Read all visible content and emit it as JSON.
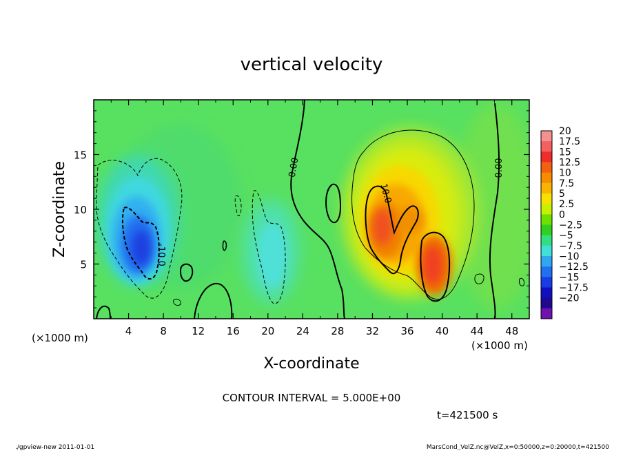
{
  "chart_data": {
    "type": "heatmap",
    "title": "vertical velocity",
    "xlabel": "X-coordinate",
    "ylabel": "Z-coordinate",
    "x_unit_left": "(×1000 m)",
    "x_unit_right": "(×1000 m)",
    "xlim": [
      0,
      50
    ],
    "ylim": [
      0,
      20
    ],
    "x_ticks": [
      4,
      8,
      12,
      16,
      20,
      24,
      28,
      32,
      36,
      40,
      44,
      48
    ],
    "y_ticks": [
      5,
      10,
      15
    ],
    "contour_interval_text": "CONTOUR INTERVAL = 5.000E+00",
    "time_text": "t=421500 s",
    "contour_labels": [
      "0.00",
      "-10.0",
      "0.00",
      "10.0",
      "0.00"
    ],
    "colorbar": {
      "labels": [
        "20",
        "17.5",
        "15",
        "12.5",
        "10",
        "7.5",
        "5",
        "2.5",
        "0",
        "−2.5",
        "−5",
        "−7.5",
        "−10",
        "−12.5",
        "−15",
        "−17.5",
        "−20"
      ],
      "colors": [
        "#f49090",
        "#f26060",
        "#f02c2c",
        "#f26010",
        "#f88c00",
        "#f8b400",
        "#f8e000",
        "#c8f000",
        "#70e000",
        "#30d020",
        "#30e080",
        "#40e0d8",
        "#30a8f0",
        "#2070f0",
        "#1a3ce8",
        "#1010c0",
        "#200890",
        "#7010b0"
      ]
    },
    "features": [
      {
        "kind": "updraft",
        "x": 33,
        "z": 8,
        "max_value": 12.5
      },
      {
        "kind": "updraft",
        "x": 38.8,
        "z": 5.5,
        "max_value": 12.5
      },
      {
        "kind": "downdraft",
        "x": 6,
        "z": 6.5,
        "min_value": -12.5
      },
      {
        "kind": "downdraft",
        "x": 20.5,
        "z": 6,
        "min_value": -5
      }
    ]
  },
  "footer": {
    "left": "./gpview-new  2011-01-01",
    "right": "MarsCond_VelZ.nc@VelZ,x=0:50000,z=0:20000,t=421500"
  }
}
